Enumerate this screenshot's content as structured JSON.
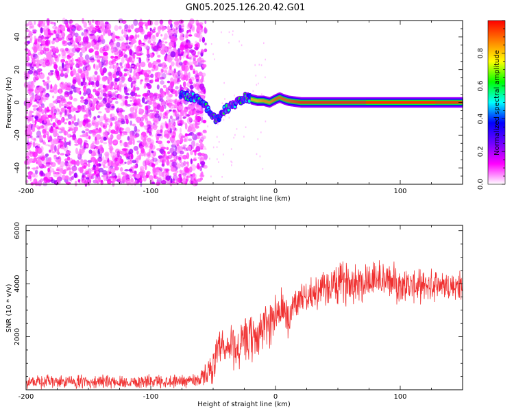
{
  "figure": {
    "title": "GN05.2025.126.20.42.G01"
  },
  "chart_data": [
    {
      "type": "heatmap",
      "xlabel": "Height of straight line (km)",
      "ylabel": "Frequency (Hz)",
      "xlim": [
        -200,
        150
      ],
      "ylim": [
        -50,
        50
      ],
      "xticks": [
        -200,
        -100,
        0,
        100
      ],
      "yticks": [
        -40,
        -20,
        0,
        20,
        40
      ],
      "grid": false,
      "noise_region_x": [
        -200,
        -58
      ],
      "ridge": {
        "x": [
          -75,
          -70,
          -65,
          -60,
          -55,
          -50,
          -47,
          -44,
          -40,
          -37,
          -34,
          -30,
          -27,
          -24,
          -20,
          -15,
          -10,
          -5,
          0,
          3,
          6,
          10,
          20,
          40,
          60,
          80,
          100,
          120,
          150
        ],
        "y": [
          5,
          4,
          3,
          1,
          -3,
          -8,
          -12,
          -7,
          -4,
          -3,
          -2,
          1,
          2,
          3,
          2,
          1,
          1,
          0,
          2,
          3,
          2,
          1,
          0,
          0,
          0,
          0,
          0,
          0,
          0
        ],
        "amplitude": [
          0.3,
          0.3,
          0.3,
          0.28,
          0.25,
          0.25,
          0.25,
          0.3,
          0.35,
          0.45,
          0.5,
          0.55,
          0.6,
          0.7,
          0.8,
          0.8,
          0.85,
          0.85,
          0.9,
          0.9,
          0.9,
          0.9,
          0.95,
          0.95,
          0.95,
          0.95,
          0.95,
          0.95,
          0.95
        ]
      },
      "colorbar": {
        "label": "Normalized spectral amplitude",
        "range": [
          0,
          1
        ],
        "ticks": [
          "0.0",
          "0.2",
          "0.4",
          "0.6",
          "0.8"
        ],
        "ticks_numeric": [
          0.0,
          0.2,
          0.4,
          0.6,
          0.8
        ],
        "colors": [
          "#ffffff",
          "#ff00ff",
          "#7000ff",
          "#0000ff",
          "#00ffff",
          "#00ff00",
          "#ffff00",
          "#ff8000",
          "#ff0000"
        ]
      }
    },
    {
      "type": "line",
      "xlabel": "Height of straight line (km)",
      "ylabel": "SNR (10 * v/v)",
      "xlim": [
        -200,
        150
      ],
      "ylim": [
        0,
        6200
      ],
      "xticks": [
        -200,
        -100,
        0,
        100
      ],
      "yticks": [
        2000,
        4000,
        6000
      ],
      "grid": false,
      "series": [
        {
          "color": "#f03030",
          "x": [
            -200,
            -180,
            -160,
            -140,
            -120,
            -100,
            -80,
            -70,
            -60,
            -50,
            -45,
            -40,
            -35,
            -30,
            -25,
            -20,
            -15,
            -10,
            -5,
            0,
            5,
            10,
            15,
            20,
            30,
            40,
            50,
            60,
            70,
            80,
            90,
            100,
            110,
            120,
            130,
            140,
            150
          ],
          "y": [
            300,
            300,
            300,
            300,
            300,
            320,
            330,
            350,
            400,
            900,
            1500,
            1400,
            1700,
            1500,
            1800,
            1900,
            2000,
            2300,
            2500,
            2900,
            3000,
            2600,
            3300,
            3500,
            3600,
            3800,
            4000,
            4100,
            4100,
            4200,
            4100,
            4000,
            3900,
            3900,
            4000,
            3900,
            3900
          ],
          "noise": [
            250,
            250,
            250,
            250,
            250,
            250,
            250,
            250,
            300,
            600,
            800,
            900,
            900,
            900,
            900,
            900,
            900,
            900,
            900,
            900,
            900,
            900,
            600,
            500,
            600,
            700,
            800,
            800,
            800,
            800,
            700,
            700,
            600,
            600,
            600,
            600,
            600
          ]
        }
      ]
    }
  ]
}
